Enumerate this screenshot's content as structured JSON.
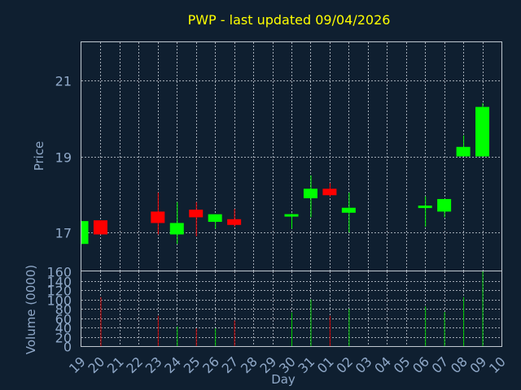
{
  "chart_data": {
    "type": "candlestick",
    "title": "PWP - last updated 09/04/2026",
    "xlabel": "Day",
    "price_panel": {
      "ylabel": "Price",
      "ylim": [
        16.0,
        22.0
      ],
      "yticks": [
        17,
        19,
        21
      ],
      "ytick_labels": [
        "17",
        "19",
        "21"
      ],
      "grid": true
    },
    "volume_panel": {
      "ylabel": "Volume (0000)",
      "ylim": [
        0,
        160
      ],
      "yticks": [
        0,
        20,
        40,
        60,
        80,
        100,
        120,
        140,
        160
      ],
      "ytick_labels": [
        "0",
        "20",
        "40",
        "60",
        "80",
        "100",
        "120",
        "140",
        "160"
      ],
      "grid": true
    },
    "x_labels": [
      "19",
      "20",
      "21",
      "22",
      "23",
      "24",
      "25",
      "26",
      "27",
      "28",
      "29",
      "30",
      "31",
      "01",
      "02",
      "03",
      "04",
      "05",
      "06",
      "07",
      "08",
      "09",
      "10"
    ],
    "colors": {
      "up": "#00ff00",
      "down": "#ff0000",
      "volume_up": "#00cc00",
      "volume_down": "#cc0000"
    },
    "candles": [
      {
        "day": "19",
        "open": 16.7,
        "high": 17.3,
        "low": 16.7,
        "close": 17.3,
        "volume": 0
      },
      {
        "day": "20",
        "open": 17.32,
        "high": 17.32,
        "low": 16.95,
        "close": 16.95,
        "volume": 105
      },
      {
        "day": "23",
        "open": 17.55,
        "high": 18.05,
        "low": 16.95,
        "close": 17.25,
        "volume": 65
      },
      {
        "day": "24",
        "open": 16.95,
        "high": 17.8,
        "low": 16.7,
        "close": 17.25,
        "volume": 42
      },
      {
        "day": "25",
        "open": 17.6,
        "high": 17.8,
        "low": 16.9,
        "close": 17.4,
        "volume": 38
      },
      {
        "day": "26",
        "open": 17.28,
        "high": 17.48,
        "low": 17.1,
        "close": 17.48,
        "volume": 38
      },
      {
        "day": "27",
        "open": 17.35,
        "high": 17.62,
        "low": 17.15,
        "close": 17.2,
        "volume": 55
      },
      {
        "day": "30",
        "open": 17.42,
        "high": 17.5,
        "low": 17.1,
        "close": 17.48,
        "volume": 72
      },
      {
        "day": "31",
        "open": 17.9,
        "high": 18.5,
        "low": 17.4,
        "close": 18.15,
        "volume": 100
      },
      {
        "day": "01",
        "open": 18.15,
        "high": 18.3,
        "low": 17.95,
        "close": 17.98,
        "volume": 65
      },
      {
        "day": "02",
        "open": 17.52,
        "high": 18.05,
        "low": 17.0,
        "close": 17.65,
        "volume": 80
      },
      {
        "day": "06",
        "open": 17.65,
        "high": 17.95,
        "low": 17.15,
        "close": 17.7,
        "volume": 85
      },
      {
        "day": "07",
        "open": 17.55,
        "high": 17.88,
        "low": 17.4,
        "close": 17.88,
        "volume": 73
      },
      {
        "day": "08",
        "open": 19.0,
        "high": 19.55,
        "low": 19.0,
        "close": 19.25,
        "volume": 105
      },
      {
        "day": "09",
        "open": 19.0,
        "high": 20.4,
        "low": 19.0,
        "close": 20.3,
        "volume": 160
      }
    ]
  }
}
